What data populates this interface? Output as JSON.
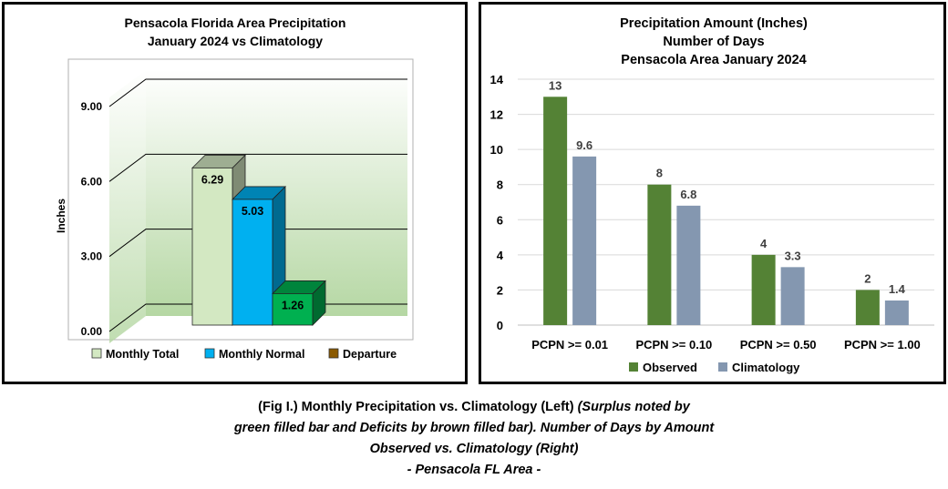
{
  "left_chart": {
    "title_line1": "Pensacola Florida Area Precipitation",
    "title_line2": "January 2024 vs Climatology",
    "ylabel": "Inches",
    "ytick_labels": [
      "0.00",
      "3.00",
      "6.00",
      "9.00"
    ],
    "yticks": [
      0,
      3,
      6,
      9
    ],
    "legend": [
      {
        "label": "Monthly Total",
        "color": "#d3e8c2"
      },
      {
        "label": "Monthly Normal",
        "color": "#00b0f0"
      },
      {
        "label": "Departure",
        "color": "#8b5a00"
      }
    ]
  },
  "right_chart": {
    "title_line1": "Precipitation Amount (Inches)",
    "title_line2": "Number of Days",
    "title_line3": "Pensacola Area January 2024",
    "ytick_labels": [
      "0",
      "2",
      "4",
      "6",
      "8",
      "10",
      "12",
      "14"
    ],
    "legend": [
      {
        "label": "Observed",
        "color": "#548235"
      },
      {
        "label": "Climatology",
        "color": "#8497b0"
      }
    ]
  },
  "chart_data": [
    {
      "type": "bar",
      "title": "Pensacola Florida Area Precipitation January 2024 vs Climatology",
      "ylabel": "Inches",
      "ylim": [
        0,
        9
      ],
      "grid": true,
      "legend_position": "bottom",
      "style": "3d",
      "series": [
        {
          "name": "Monthly Total",
          "values": [
            6.29
          ],
          "color": "#d3e8c2"
        },
        {
          "name": "Monthly Normal",
          "values": [
            5.03
          ],
          "color": "#00b0f0"
        },
        {
          "name": "Departure",
          "values": [
            1.26
          ],
          "color": "#00b050"
        }
      ],
      "data_labels": [
        "6.29",
        "5.03",
        "1.26"
      ]
    },
    {
      "type": "bar",
      "title": "Precipitation Amount (Inches) Number of Days Pensacola Area January 2024",
      "categories": [
        "PCPN >= 0.01",
        "PCPN >= 0.10",
        "PCPN >= 0.50",
        "PCPN >= 1.00"
      ],
      "ylim": [
        0,
        14
      ],
      "grid": true,
      "legend_position": "bottom",
      "series": [
        {
          "name": "Observed",
          "values": [
            13,
            8,
            4,
            2
          ],
          "labels": [
            "13",
            "8",
            "4",
            "2"
          ],
          "color": "#548235"
        },
        {
          "name": "Climatology",
          "values": [
            9.6,
            6.8,
            3.3,
            1.4
          ],
          "labels": [
            "9.6",
            "6.8",
            "3.3",
            "1.4"
          ],
          "color": "#8497b0"
        }
      ]
    }
  ],
  "caption": {
    "line1_bold": "(Fig I.) Monthly Precipitation vs. Climatology (Left)",
    "line1_italic": "(Surplus noted by",
    "line2": "green filled bar and Deficits by brown filled bar). Number of Days by Amount",
    "line3": "Observed vs. Climatology (Right)",
    "line4": "- Pensacola FL Area -"
  }
}
